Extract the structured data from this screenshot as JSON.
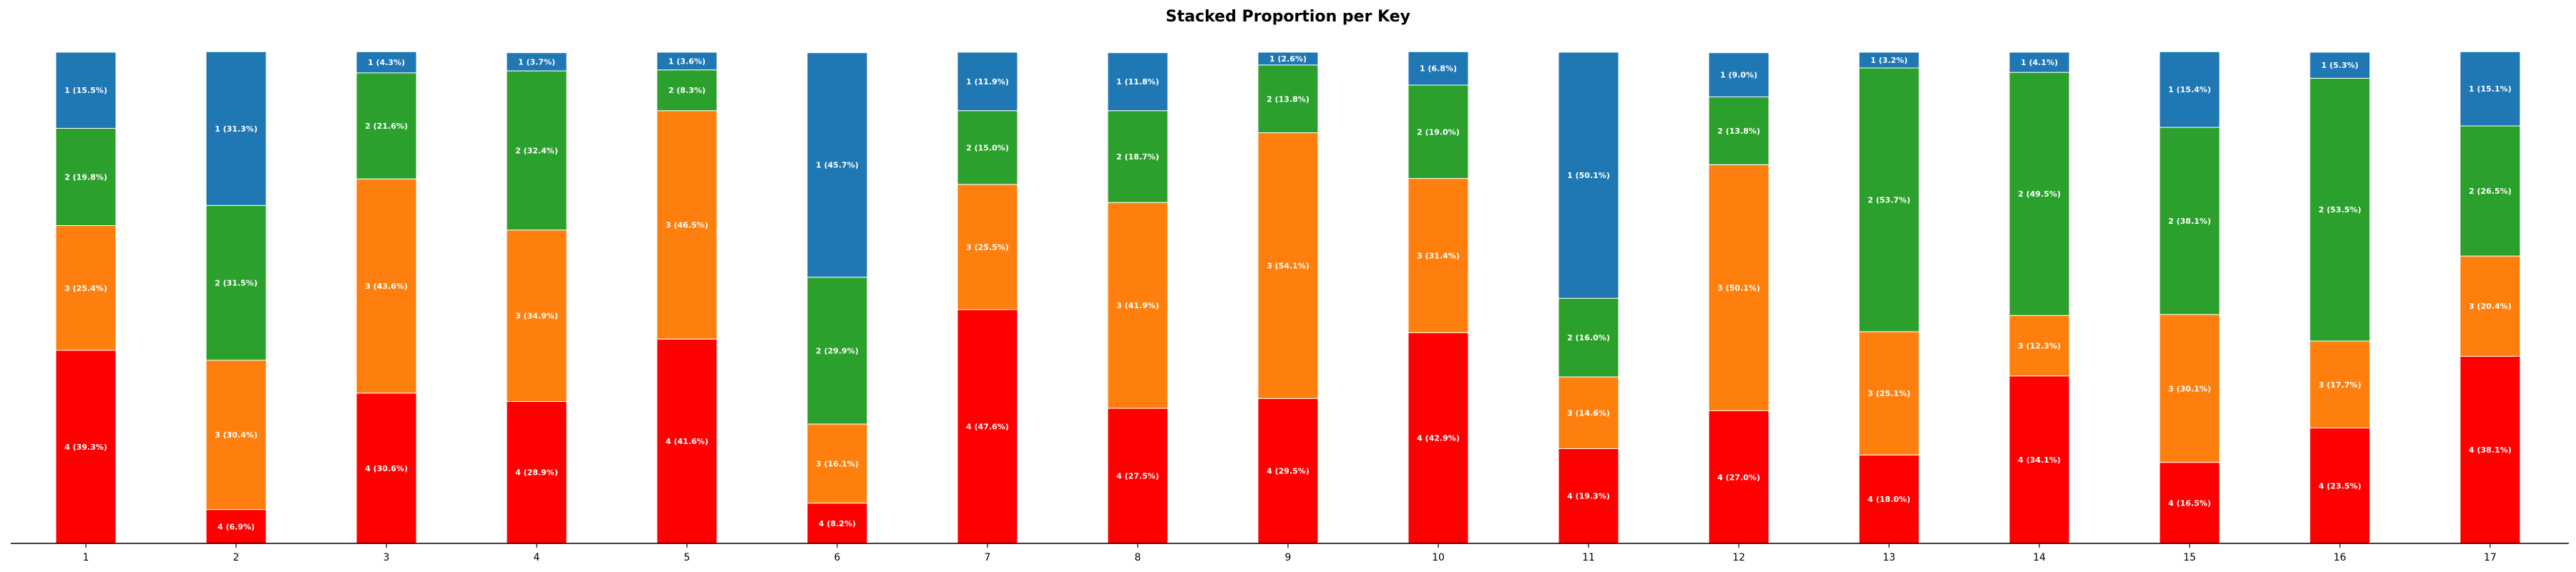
{
  "chart_data": {
    "type": "bar",
    "stacked": true,
    "normalized": true,
    "title": "Stacked Proportion per Key",
    "xlabel": "",
    "ylabel": "",
    "ylim": [
      0,
      100
    ],
    "grid": false,
    "categories": [
      "1",
      "2",
      "3",
      "4",
      "5",
      "6",
      "7",
      "8",
      "9",
      "10",
      "11",
      "12",
      "13",
      "14",
      "15",
      "16",
      "17"
    ],
    "series": [
      {
        "key": "4",
        "color": "#ff0000",
        "values": [
          39.3,
          6.9,
          30.6,
          28.9,
          41.6,
          8.2,
          47.6,
          27.5,
          29.5,
          42.9,
          19.3,
          27.0,
          18.0,
          34.1,
          16.5,
          23.5,
          38.1
        ]
      },
      {
        "key": "3",
        "color": "#ff7f0e",
        "values": [
          25.4,
          30.4,
          43.6,
          34.9,
          46.5,
          16.1,
          25.5,
          41.9,
          54.1,
          31.4,
          14.6,
          50.1,
          25.1,
          12.3,
          30.1,
          17.7,
          20.4
        ]
      },
      {
        "key": "2",
        "color": "#2ca02c",
        "values": [
          19.8,
          31.5,
          21.6,
          32.4,
          8.3,
          29.9,
          15.0,
          18.7,
          13.8,
          19.0,
          16.0,
          13.8,
          53.7,
          49.5,
          38.1,
          53.5,
          26.5
        ]
      },
      {
        "key": "1",
        "color": "#1f77b4",
        "values": [
          15.5,
          31.3,
          4.3,
          3.7,
          3.6,
          45.7,
          11.9,
          11.8,
          2.6,
          6.8,
          50.1,
          9.0,
          3.2,
          4.1,
          15.4,
          5.3,
          15.1
        ]
      }
    ],
    "colors": {
      "background": "#ffffff",
      "axis": "#000000",
      "segment_label": "#ffffff"
    }
  }
}
